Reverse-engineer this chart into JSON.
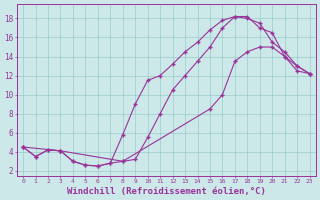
{
  "background_color": "#cce8e8",
  "grid_color": "#99cccc",
  "line_color": "#993399",
  "marker": "+",
  "xlabel": "Windchill (Refroidissement éolien,°C)",
  "xlabel_fontsize": 6.5,
  "ylabel_ticks": [
    2,
    4,
    6,
    8,
    10,
    12,
    14,
    16,
    18
  ],
  "xlim": [
    -0.5,
    23.5
  ],
  "ylim": [
    1.5,
    19.5
  ],
  "curve1_x": [
    0,
    1,
    2,
    3,
    4,
    5,
    6,
    7,
    8,
    9,
    10,
    11,
    12,
    13,
    14,
    15,
    16,
    17,
    18,
    19,
    20,
    21,
    22,
    23
  ],
  "curve1_y": [
    4.5,
    3.5,
    4.2,
    4.1,
    3.0,
    2.6,
    2.5,
    2.8,
    3.0,
    3.2,
    5.5,
    8.0,
    10.5,
    12.0,
    13.5,
    15.0,
    17.0,
    18.2,
    18.2,
    17.0,
    16.5,
    14.0,
    12.5,
    12.2
  ],
  "curve2_x": [
    0,
    1,
    2,
    3,
    4,
    5,
    6,
    7,
    8,
    9,
    10,
    11,
    12,
    13,
    14,
    15,
    16,
    17,
    18,
    19,
    20,
    21,
    22,
    23
  ],
  "curve2_y": [
    4.5,
    3.5,
    4.2,
    4.1,
    3.0,
    2.6,
    2.5,
    2.8,
    5.8,
    9.0,
    11.5,
    12.0,
    13.2,
    14.5,
    15.5,
    16.8,
    17.8,
    18.2,
    18.0,
    17.5,
    15.5,
    14.5,
    13.0,
    12.2
  ],
  "curve3_x": [
    0,
    3,
    8,
    15,
    16,
    17,
    18,
    19,
    20,
    21,
    22,
    23
  ],
  "curve3_y": [
    4.5,
    4.1,
    3.0,
    8.5,
    10.0,
    13.5,
    14.5,
    15.0,
    15.0,
    14.0,
    13.0,
    12.2
  ]
}
